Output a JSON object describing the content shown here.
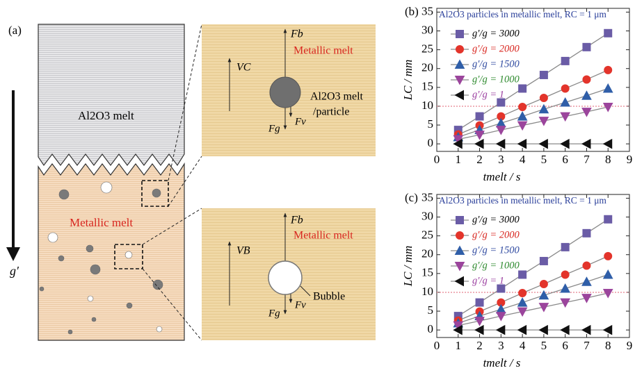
{
  "figure": {
    "panel_label": "(a)",
    "oxide_melt": "Al2O3 melt",
    "metallic_melt": "Metallic melt",
    "gravity": "g′",
    "zoom_particle": {
      "force_b": "Fb",
      "velocity": "VC",
      "melt": "Metallic melt",
      "particle_1": "Al2O3 melt",
      "particle_2": "/particle",
      "force_v": "Fv",
      "force_g": "Fg"
    },
    "zoom_bubble": {
      "force_b": "Fb",
      "velocity": "VB",
      "melt": "Metallic melt",
      "bubble": "Bubble",
      "force_v": "Fv",
      "force_g": "Fg"
    }
  },
  "chart_data": [
    {
      "type": "line",
      "panel_label": "(b)",
      "title": "Al2O3 particles in metallic melt, RC = 1 μm",
      "xlabel": "tmelt / s",
      "ylabel": "LC / mm",
      "x": [
        1,
        2,
        3,
        4,
        5,
        6,
        7,
        8
      ],
      "xlim": [
        0,
        9
      ],
      "xticks": [
        0,
        1,
        2,
        3,
        4,
        5,
        6,
        7,
        8,
        9
      ],
      "ylim": [
        -2,
        36
      ],
      "yticks": [
        0,
        5,
        10,
        15,
        20,
        25,
        30,
        35
      ],
      "hline": 10,
      "line_color": "#8a8a8a",
      "series": [
        {
          "name": "g′/g = 3000",
          "color": "#6a5ca6",
          "label_color": "#000000",
          "marker": "square",
          "values": [
            3.7,
            7.3,
            11,
            14.7,
            18.3,
            22,
            25.7,
            29.4
          ]
        },
        {
          "name": "g′/g = 2000",
          "color": "#e3342b",
          "label_color": "#d8261f",
          "marker": "circle",
          "values": [
            2.5,
            4.9,
            7.3,
            9.8,
            12.2,
            14.7,
            17.1,
            19.6
          ]
        },
        {
          "name": "g′/g = 1500",
          "color": "#2f5ea8",
          "label_color": "#2f4aa0",
          "marker": "triangle-up",
          "values": [
            1.8,
            3.7,
            5.5,
            7.3,
            9.2,
            11,
            12.8,
            14.7
          ]
        },
        {
          "name": "g′/g = 1000",
          "color": "#9b459c",
          "label_color": "#2e8a2e",
          "marker": "triangle-down",
          "values": [
            1.2,
            2.4,
            3.7,
            4.9,
            6.1,
            7.3,
            8.5,
            9.8
          ]
        },
        {
          "name": "g′/g = 1",
          "color": "#111111",
          "label_color": "#9b3fa0",
          "marker": "triangle-left",
          "values": [
            0,
            0,
            0,
            0,
            0,
            0,
            0,
            0
          ]
        }
      ]
    },
    {
      "type": "line",
      "panel_label": "(c)",
      "title": "Al2O3 particles in metallic melt, RC = 1 μm",
      "xlabel": "tmelt / s",
      "ylabel": "LC / mm",
      "x": [
        1,
        2,
        3,
        4,
        5,
        6,
        7,
        8
      ],
      "xlim": [
        0,
        9
      ],
      "xticks": [
        0,
        1,
        2,
        3,
        4,
        5,
        6,
        7,
        8,
        9
      ],
      "ylim": [
        -2,
        36
      ],
      "yticks": [
        0,
        5,
        10,
        15,
        20,
        25,
        30,
        35
      ],
      "hline": 10,
      "line_color": "#8a8a8a",
      "series": [
        {
          "name": "g′/g = 3000",
          "color": "#6a5ca6",
          "label_color": "#000000",
          "marker": "square",
          "values": [
            3.7,
            7.3,
            11,
            14.7,
            18.3,
            22,
            25.7,
            29.4
          ]
        },
        {
          "name": "g′/g = 2000",
          "color": "#e3342b",
          "label_color": "#d8261f",
          "marker": "circle",
          "values": [
            2.5,
            4.9,
            7.3,
            9.8,
            12.2,
            14.7,
            17.1,
            19.6
          ]
        },
        {
          "name": "g′/g = 1500",
          "color": "#2f5ea8",
          "label_color": "#2f4aa0",
          "marker": "triangle-up",
          "values": [
            1.8,
            3.7,
            5.5,
            7.3,
            9.2,
            11,
            12.8,
            14.7
          ]
        },
        {
          "name": "g′/g = 1000",
          "color": "#9b459c",
          "label_color": "#2e8a2e",
          "marker": "triangle-down",
          "values": [
            1.2,
            2.4,
            3.7,
            4.9,
            6.1,
            7.3,
            8.5,
            9.8
          ]
        },
        {
          "name": "g′/g = 1",
          "color": "#111111",
          "label_color": "#9b3fa0",
          "marker": "triangle-left",
          "values": [
            0,
            0,
            0,
            0,
            0,
            0,
            0,
            0
          ]
        }
      ]
    }
  ]
}
